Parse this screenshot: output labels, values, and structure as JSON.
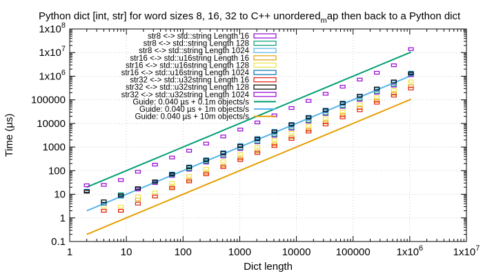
{
  "chart_data": {
    "type": "scatter",
    "title": "Python dict [int, str] for word sizes 8, 16, 32 to C++ unordered_map then back to a Python dict",
    "xlabel": "Dict length",
    "ylabel": "Time (µs)",
    "xscale": "log",
    "yscale": "log",
    "xlim": [
      1,
      10000000
    ],
    "ylim": [
      0.1,
      100000000
    ],
    "x_ticks": [
      {
        "v": 1,
        "label": "1"
      },
      {
        "v": 10,
        "label": "10"
      },
      {
        "v": 100,
        "label": "100"
      },
      {
        "v": 1000,
        "label": "1000"
      },
      {
        "v": 10000,
        "label": "10000"
      },
      {
        "v": 100000,
        "label": "100000"
      },
      {
        "v": 1000000,
        "base": "1x10",
        "exp": "6"
      },
      {
        "v": 10000000,
        "base": "1x10",
        "exp": "7"
      }
    ],
    "y_ticks": [
      {
        "v": 0.1,
        "label": "0.1"
      },
      {
        "v": 1,
        "label": "1"
      },
      {
        "v": 10,
        "label": "10"
      },
      {
        "v": 100,
        "label": "100"
      },
      {
        "v": 1000,
        "label": "1000"
      },
      {
        "v": 10000,
        "label": "10000"
      },
      {
        "v": 100000,
        "label": "100000"
      },
      {
        "v": 1000000,
        "base": "1x10",
        "exp": "6"
      },
      {
        "v": 10000000,
        "base": "1x10",
        "exp": "7"
      },
      {
        "v": 100000000,
        "base": "1x10",
        "exp": "8"
      }
    ],
    "x": [
      2,
      4,
      8,
      16,
      32,
      64,
      128,
      256,
      512,
      1024,
      2048,
      4096,
      8192,
      16384,
      32768,
      65536,
      131072,
      262144,
      524288,
      1048576
    ],
    "series": [
      {
        "name": "str8 <-> std::string Length 16",
        "color": "#9400d3",
        "values": [
          13,
          4,
          9,
          16,
          30,
          60,
          110,
          220,
          400,
          820,
          1600,
          3000,
          6000,
          12000,
          25000,
          50000,
          100000,
          200000,
          400000,
          1100000
        ]
      },
      {
        "name": "str8 <-> std::string Length 128",
        "color": "#009e73",
        "values": [
          14,
          5,
          10,
          18,
          33,
          66,
          120,
          240,
          450,
          900,
          1700,
          3300,
          6600,
          13000,
          27000,
          55000,
          110000,
          220000,
          440000,
          1200000
        ]
      },
      {
        "name": "str8 <-> std::string Length 1024",
        "color": "#56b4e9",
        "values": [
          14,
          4,
          8,
          18,
          35,
          70,
          140,
          270,
          550,
          1100,
          2000,
          4000,
          8000,
          16000,
          33000,
          66000,
          130000,
          270000,
          550000,
          1200000
        ]
      },
      {
        "name": "str16 <-> std::u16string Length 16",
        "color": "#e69f00",
        "values": [
          13,
          2,
          2,
          6,
          8,
          20,
          40,
          80,
          160,
          330,
          650,
          1300,
          2600,
          5300,
          11000,
          22000,
          45000,
          90000,
          180000,
          380000
        ]
      },
      {
        "name": "str16 <-> std::u16string Length 128",
        "color": "#f0e442",
        "values": [
          13,
          3,
          3,
          8,
          12,
          30,
          60,
          120,
          250,
          500,
          1000,
          2000,
          4000,
          8000,
          16000,
          32000,
          65000,
          130000,
          260000,
          600000
        ]
      },
      {
        "name": "str16 <-> std::u16string Length 1024",
        "color": "#0072b2",
        "values": [
          14,
          4,
          8,
          18,
          35,
          75,
          150,
          300,
          600,
          1200,
          2400,
          4800,
          9500,
          19000,
          38000,
          76000,
          150000,
          300000,
          600000,
          1400000
        ]
      },
      {
        "name": "str32 <-> std::u32string Length 16",
        "color": "#e51e10",
        "values": [
          13,
          2,
          2,
          4,
          8,
          18,
          35,
          70,
          140,
          280,
          560,
          1100,
          2200,
          4500,
          9000,
          18000,
          36000,
          75000,
          150000,
          300000
        ]
      },
      {
        "name": "str32 <-> std::u32string Length 128",
        "color": "#000000",
        "values": [
          13,
          5,
          9,
          18,
          35,
          70,
          140,
          280,
          560,
          1100,
          2200,
          4500,
          9000,
          18000,
          36000,
          72000,
          150000,
          300000,
          600000,
          1300000
        ]
      },
      {
        "name": "str32 <-> std::u32string Length 1024",
        "color": "#9400d3",
        "values": [
          24,
          25,
          40,
          90,
          180,
          360,
          700,
          1400,
          2800,
          5500,
          11000,
          22000,
          45000,
          90000,
          180000,
          360000,
          720000,
          1400000,
          2900000,
          14000000
        ]
      }
    ],
    "guides": [
      {
        "name": "Guide: 0.040 µs + 0.1m objects/s",
        "color": "#009e73",
        "rate": 0.1
      },
      {
        "name": "Guide: 0.040 µs + 1m objects/s",
        "color": "#56b4e9",
        "rate": 1
      },
      {
        "name": "Guide: 0.040 µs + 10m objects/s",
        "color": "#e69f00",
        "rate": 10
      }
    ]
  }
}
